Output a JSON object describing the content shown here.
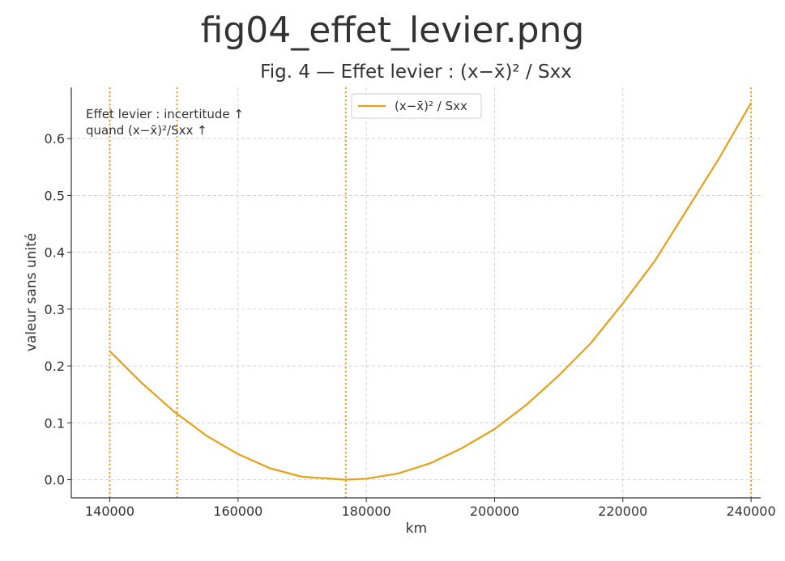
{
  "header": {
    "title": "fig04_effet_levier.png"
  },
  "chart_data": {
    "type": "line",
    "title": "Fig. 4 — Effet levier : (x−x̄)² / Sxx",
    "xlabel": "km",
    "ylabel": "valeur sans unité",
    "xlim": [
      134000,
      241500
    ],
    "ylim": [
      -0.032,
      0.69
    ],
    "xticks": [
      140000,
      160000,
      180000,
      200000,
      220000,
      240000
    ],
    "xtick_labels": [
      "140000",
      "160000",
      "180000",
      "200000",
      "220000",
      "240000"
    ],
    "yticks": [
      0.0,
      0.1,
      0.2,
      0.3,
      0.4,
      0.5,
      0.6
    ],
    "ytick_labels": [
      "0.0",
      "0.1",
      "0.2",
      "0.3",
      "0.4",
      "0.5",
      "0.6"
    ],
    "grid": true,
    "legend_position": "top-center",
    "series": [
      {
        "name": "(x−x̄)² / Sxx",
        "color": "#e6a117",
        "x": [
          140000,
          145000,
          150000,
          155000,
          160000,
          165000,
          170000,
          176800,
          180000,
          185000,
          190000,
          195000,
          200000,
          205000,
          210000,
          215000,
          220000,
          225000,
          230000,
          235000,
          240000
        ],
        "y": [
          0.226,
          0.17,
          0.12,
          0.078,
          0.045,
          0.02,
          0.005,
          0.0,
          0.0017,
          0.011,
          0.029,
          0.056,
          0.089,
          0.132,
          0.183,
          0.24,
          0.31,
          0.385,
          0.475,
          0.565,
          0.663
        ]
      }
    ],
    "vlines": {
      "color": "#e6a117",
      "style": "dotted",
      "x": [
        140000,
        150500,
        176800,
        240000
      ]
    },
    "annotation": {
      "lines": [
        "Effet levier : incertitude ↑",
        "quand (x−x̄)²/Sxx ↑"
      ],
      "position": "top-left"
    }
  }
}
